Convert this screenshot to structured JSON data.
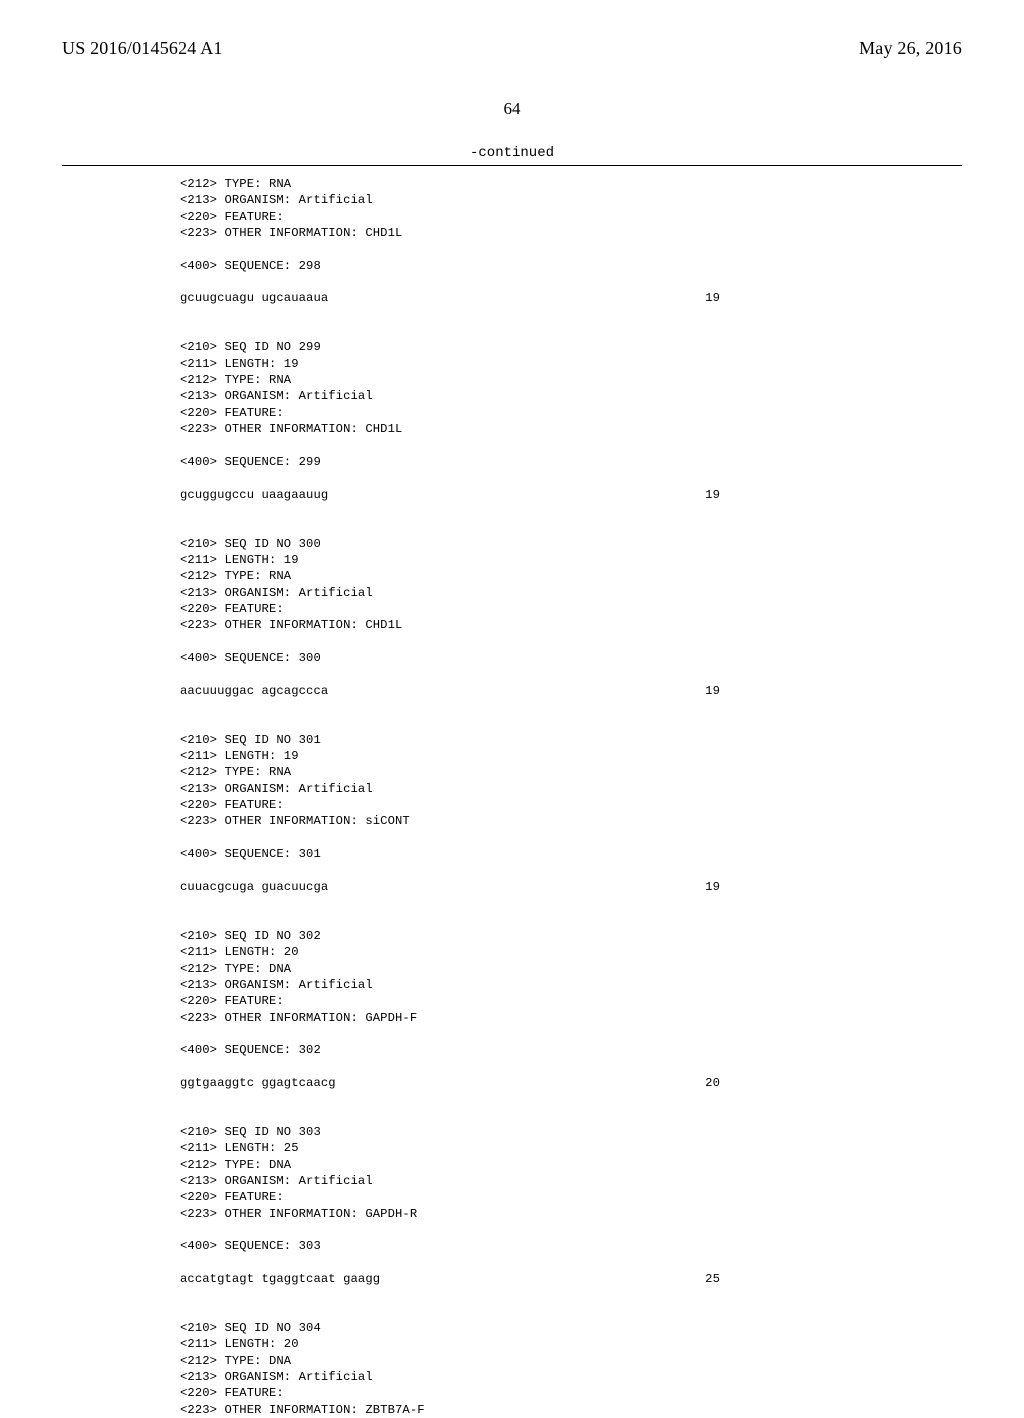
{
  "header": {
    "pub_number": "US 2016/0145624 A1",
    "pub_date": "May 26, 2016"
  },
  "page_number": "64",
  "continued_label": "-continued",
  "blocks": [
    {
      "type": "meta",
      "lines": [
        "<212> TYPE: RNA",
        "<213> ORGANISM: Artificial",
        "<220> FEATURE:",
        "<223> OTHER INFORMATION: CHD1L"
      ]
    },
    {
      "type": "blank"
    },
    {
      "type": "line",
      "text": "<400> SEQUENCE: 298"
    },
    {
      "type": "blank"
    },
    {
      "type": "seq",
      "sequence": "gcuugcuagu ugcauaaua",
      "length": "19"
    },
    {
      "type": "blank"
    },
    {
      "type": "blank"
    },
    {
      "type": "meta",
      "lines": [
        "<210> SEQ ID NO 299",
        "<211> LENGTH: 19",
        "<212> TYPE: RNA",
        "<213> ORGANISM: Artificial",
        "<220> FEATURE:",
        "<223> OTHER INFORMATION: CHD1L"
      ]
    },
    {
      "type": "blank"
    },
    {
      "type": "line",
      "text": "<400> SEQUENCE: 299"
    },
    {
      "type": "blank"
    },
    {
      "type": "seq",
      "sequence": "gcuggugccu uaagaauug",
      "length": "19"
    },
    {
      "type": "blank"
    },
    {
      "type": "blank"
    },
    {
      "type": "meta",
      "lines": [
        "<210> SEQ ID NO 300",
        "<211> LENGTH: 19",
        "<212> TYPE: RNA",
        "<213> ORGANISM: Artificial",
        "<220> FEATURE:",
        "<223> OTHER INFORMATION: CHD1L"
      ]
    },
    {
      "type": "blank"
    },
    {
      "type": "line",
      "text": "<400> SEQUENCE: 300"
    },
    {
      "type": "blank"
    },
    {
      "type": "seq",
      "sequence": "aacuuuggac agcagccca",
      "length": "19"
    },
    {
      "type": "blank"
    },
    {
      "type": "blank"
    },
    {
      "type": "meta",
      "lines": [
        "<210> SEQ ID NO 301",
        "<211> LENGTH: 19",
        "<212> TYPE: RNA",
        "<213> ORGANISM: Artificial",
        "<220> FEATURE:",
        "<223> OTHER INFORMATION: siCONT"
      ]
    },
    {
      "type": "blank"
    },
    {
      "type": "line",
      "text": "<400> SEQUENCE: 301"
    },
    {
      "type": "blank"
    },
    {
      "type": "seq",
      "sequence": "cuuacgcuga guacuucga",
      "length": "19"
    },
    {
      "type": "blank"
    },
    {
      "type": "blank"
    },
    {
      "type": "meta",
      "lines": [
        "<210> SEQ ID NO 302",
        "<211> LENGTH: 20",
        "<212> TYPE: DNA",
        "<213> ORGANISM: Artificial",
        "<220> FEATURE:",
        "<223> OTHER INFORMATION: GAPDH-F"
      ]
    },
    {
      "type": "blank"
    },
    {
      "type": "line",
      "text": "<400> SEQUENCE: 302"
    },
    {
      "type": "blank"
    },
    {
      "type": "seq",
      "sequence": "ggtgaaggtc ggagtcaacg",
      "length": "20"
    },
    {
      "type": "blank"
    },
    {
      "type": "blank"
    },
    {
      "type": "meta",
      "lines": [
        "<210> SEQ ID NO 303",
        "<211> LENGTH: 25",
        "<212> TYPE: DNA",
        "<213> ORGANISM: Artificial",
        "<220> FEATURE:",
        "<223> OTHER INFORMATION: GAPDH-R"
      ]
    },
    {
      "type": "blank"
    },
    {
      "type": "line",
      "text": "<400> SEQUENCE: 303"
    },
    {
      "type": "blank"
    },
    {
      "type": "seq",
      "sequence": "accatgtagt tgaggtcaat gaagg",
      "length": "25"
    },
    {
      "type": "blank"
    },
    {
      "type": "blank"
    },
    {
      "type": "meta",
      "lines": [
        "<210> SEQ ID NO 304",
        "<211> LENGTH: 20",
        "<212> TYPE: DNA",
        "<213> ORGANISM: Artificial",
        "<220> FEATURE:",
        "<223> OTHER INFORMATION: ZBTB7A-F"
      ]
    }
  ]
}
